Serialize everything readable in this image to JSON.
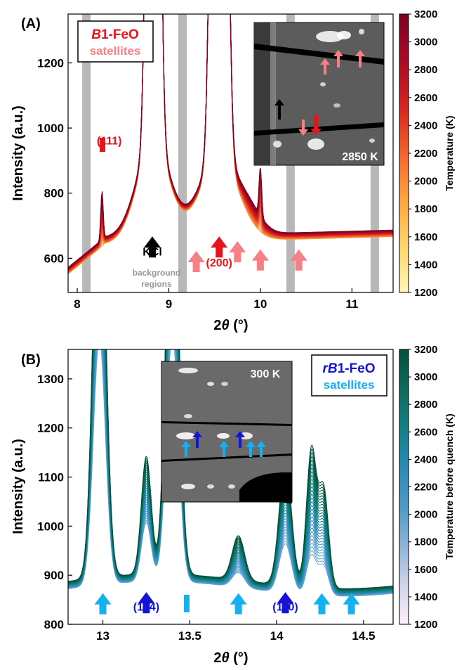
{
  "chart_data": [
    {
      "panel_label": "(A)",
      "type": "line",
      "xlabel_main": "2",
      "xlabel_theta": "θ",
      "xlabel_unit": " (°)",
      "ylabel": "Intensity (a.u.)",
      "xlim": [
        7.9,
        11.45
      ],
      "ylim": [
        495,
        1350
      ],
      "xticks": [
        "8",
        "9",
        "10",
        "11"
      ],
      "yticks": [
        "600",
        "800",
        "1000",
        "1200"
      ],
      "xtick_values": [
        8,
        9,
        10,
        11
      ],
      "ytick_values": [
        600,
        800,
        1000,
        1200
      ],
      "background_regions_x": [
        8.1,
        9.15,
        10.33,
        11.25
      ],
      "background_label": [
        "background",
        "regions"
      ],
      "legend": {
        "phase_italic": "B",
        "phase_rest": "1-FeO",
        "satellites": "satellites",
        "phase_color": "#e8141b",
        "sat_color": "#f77f86"
      },
      "peak_labels": [
        {
          "text": "(111)",
          "x": 8.35,
          "y": 950,
          "color": "#e8141b"
        },
        {
          "text": "(200)",
          "x": 9.55,
          "y": 575,
          "color": "#e8141b"
        },
        {
          "text": "KCl",
          "x": 8.82,
          "y": 608,
          "color": "#000000"
        }
      ],
      "arrows": [
        {
          "x": 8.82,
          "y": 650,
          "color": "#000000"
        },
        {
          "x": 9.3,
          "y": 605,
          "color": "#f77f86"
        },
        {
          "x": 9.55,
          "y": 650,
          "color": "#e8141b"
        },
        {
          "x": 9.75,
          "y": 635,
          "color": "#f77f86"
        },
        {
          "x": 10.0,
          "y": 610,
          "color": "#f77f86"
        },
        {
          "x": 10.42,
          "y": 610,
          "color": "#f77f86"
        }
      ],
      "series_count": 30,
      "colorbar": {
        "label": "Temperature (K)",
        "min": 1200,
        "max": 3200,
        "ticks": [
          "1200",
          "1400",
          "1600",
          "1800",
          "2000",
          "2200",
          "2400",
          "2600",
          "2800",
          "3000",
          "3200"
        ],
        "colors": [
          "#fff7b4",
          "#fed66a",
          "#fda53e",
          "#f3632b",
          "#d8221f",
          "#ab0a25",
          "#7c0022"
        ]
      },
      "inset_label": "2850 K"
    },
    {
      "panel_label": "(B)",
      "type": "line",
      "xlabel_main": "2",
      "xlabel_theta": "θ",
      "xlabel_unit": " (°)",
      "ylabel": "Intensity (a.u.)",
      "xlim": [
        12.8,
        14.67
      ],
      "ylim": [
        800,
        1360
      ],
      "xticks": [
        "13",
        "13.5",
        "14",
        "14.5"
      ],
      "yticks": [
        "800",
        "900",
        "1000",
        "1100",
        "1200",
        "1300"
      ],
      "xtick_values": [
        13,
        13.5,
        14,
        14.5
      ],
      "ytick_values": [
        800,
        900,
        1000,
        1100,
        1200,
        1300
      ],
      "legend": {
        "phase_italic": "rB",
        "phase_rest": "1-FeO",
        "satellites": "satellites",
        "phase_color": "#1414d6",
        "sat_color": "#14b0f0"
      },
      "peak_labels": [
        {
          "text": "(104)",
          "x": 13.25,
          "y": 828,
          "color": "#1414d6"
        },
        {
          "text": "(110)",
          "x": 14.05,
          "y": 828,
          "color": "#1414d6"
        }
      ],
      "arrows": [
        {
          "x": 13.0,
          "y": 852,
          "color": "#14b0f0"
        },
        {
          "x": 13.25,
          "y": 854,
          "color": "#1414d6"
        },
        {
          "x": 13.78,
          "y": 852,
          "color": "#14b0f0"
        },
        {
          "x": 14.05,
          "y": 854,
          "color": "#1414d6"
        },
        {
          "x": 14.26,
          "y": 852,
          "color": "#14b0f0"
        },
        {
          "x": 14.43,
          "y": 852,
          "color": "#14b0f0"
        }
      ],
      "series_count": 30,
      "colorbar": {
        "label": "Temperature before quench (K)",
        "min": 1200,
        "max": 3200,
        "ticks": [
          "1200",
          "1400",
          "1600",
          "1800",
          "2000",
          "2200",
          "2400",
          "2600",
          "2800",
          "3000",
          "3200"
        ],
        "colors": [
          "#fbf1f8",
          "#cfd3ea",
          "#8fb4d8",
          "#4d9ac8",
          "#2a8bb5",
          "#127f86",
          "#0c6c5a",
          "#00503c"
        ]
      },
      "inset_label": "300 K"
    }
  ]
}
